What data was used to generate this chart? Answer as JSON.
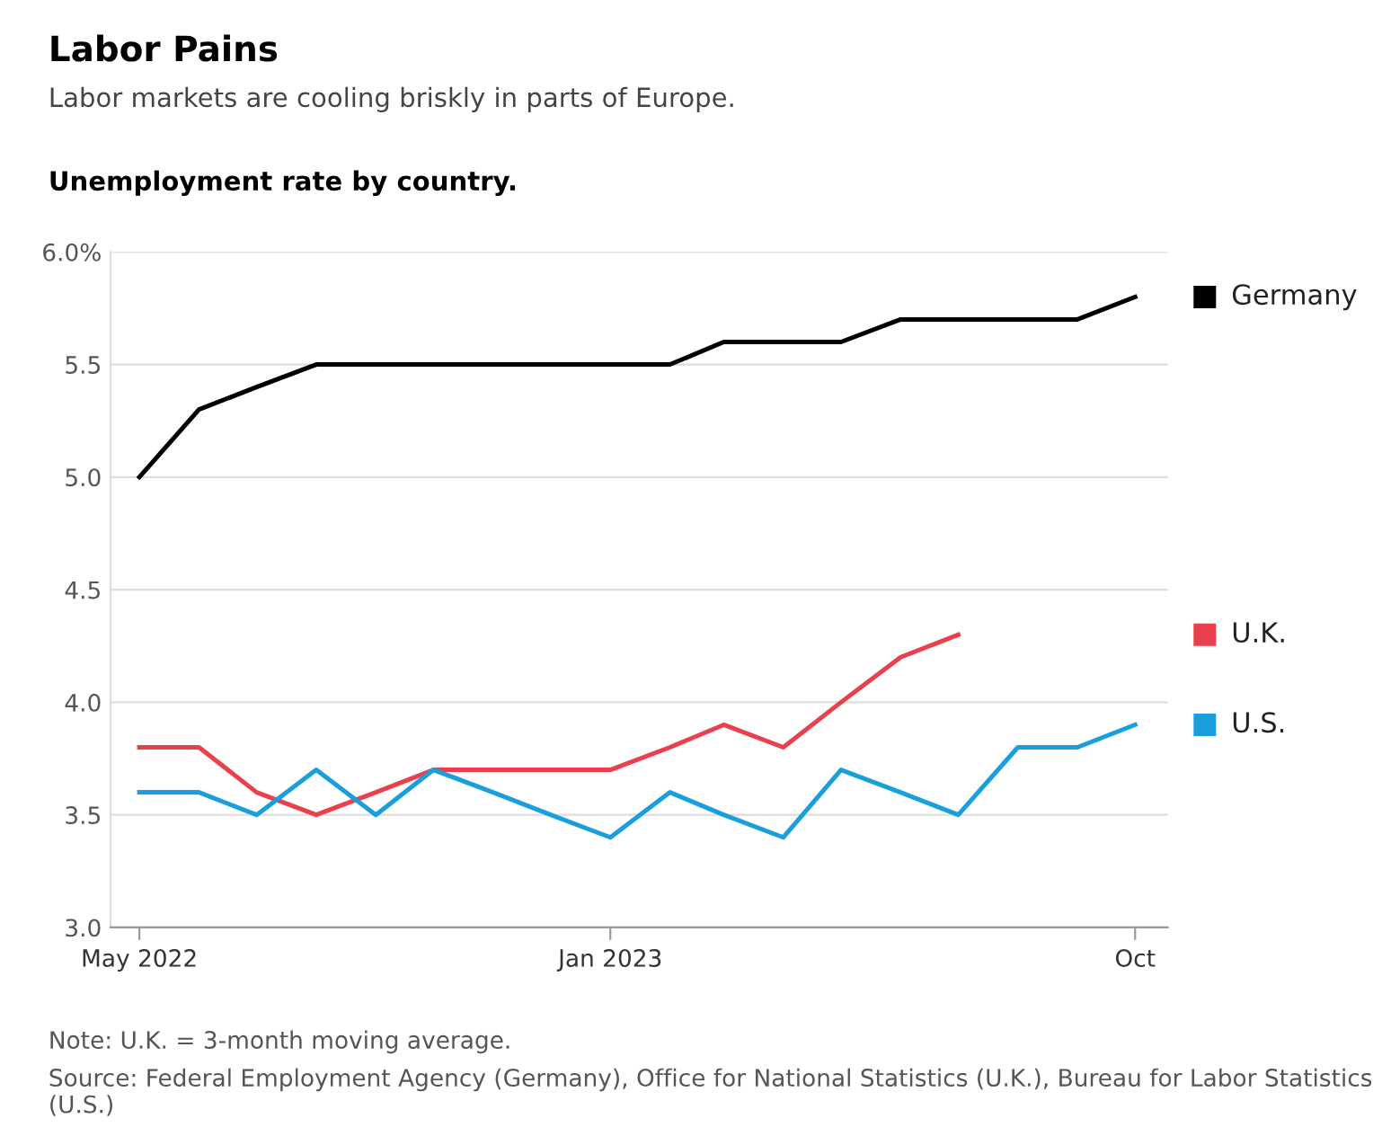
{
  "chart_data": {
    "type": "line",
    "title": "Labor Pains",
    "subtitle": "Labor markets are cooling briskly in parts of Europe.",
    "ylabel": "Unemployment rate by country.",
    "x": [
      "2022-05",
      "2022-06",
      "2022-07",
      "2022-08",
      "2022-09",
      "2022-10",
      "2022-11",
      "2022-12",
      "2023-01",
      "2023-02",
      "2023-03",
      "2023-04",
      "2023-05",
      "2023-06",
      "2023-07",
      "2023-08",
      "2023-09",
      "2023-10"
    ],
    "series": [
      {
        "name": "Germany",
        "color": "#000000",
        "values": [
          5.0,
          5.3,
          5.4,
          5.5,
          5.5,
          5.5,
          5.5,
          5.5,
          5.5,
          5.5,
          5.6,
          5.6,
          5.6,
          5.7,
          5.7,
          5.7,
          5.7,
          5.8
        ]
      },
      {
        "name": "U.K.",
        "color": "#e8414d",
        "values": [
          3.8,
          3.8,
          3.6,
          3.5,
          3.6,
          3.7,
          3.7,
          3.7,
          3.7,
          3.8,
          3.9,
          3.8,
          4.0,
          4.2,
          4.3,
          null,
          null,
          null
        ]
      },
      {
        "name": "U.S.",
        "color": "#1a9fdc",
        "values": [
          3.6,
          3.6,
          3.5,
          3.7,
          3.5,
          3.7,
          3.6,
          3.5,
          3.4,
          3.6,
          3.5,
          3.4,
          3.7,
          3.6,
          3.5,
          3.8,
          3.8,
          3.9
        ]
      }
    ],
    "xlim": [
      "2022-04-16",
      "2023-10-18"
    ],
    "xticks": [
      {
        "value": "2022-05",
        "label": "May 2022"
      },
      {
        "value": "2023-01",
        "label": "Jan 2023"
      },
      {
        "value": "2023-10",
        "label": "Oct"
      }
    ],
    "ylim": [
      3.0,
      6.0
    ],
    "yticks": [
      {
        "value": 3.0,
        "label": "3.0"
      },
      {
        "value": 3.5,
        "label": "3.5"
      },
      {
        "value": 4.0,
        "label": "4.0"
      },
      {
        "value": 4.5,
        "label": "4.5"
      },
      {
        "value": 5.0,
        "label": "5.0"
      },
      {
        "value": 5.5,
        "label": "5.5"
      },
      {
        "value": 6.0,
        "label": "6.0%"
      }
    ],
    "grid": "y",
    "legend": "right",
    "marker": "none",
    "line_style": "solid",
    "annotations": [
      "Note: U.K. = 3-month moving average.",
      "Source: Federal Employment Agency (Germany), Office for National Statistics (U.K.), Bureau for Labor Statistics (U.S.)"
    ]
  }
}
